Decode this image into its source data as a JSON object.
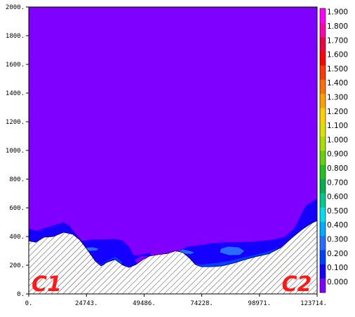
{
  "chart_data": {
    "type": "heatmap",
    "title": "",
    "xlabel": "",
    "ylabel": "",
    "xlim": [
      0,
      123714
    ],
    "ylim": [
      0,
      2000
    ],
    "x_ticks": [
      0,
      24743,
      49486,
      74228,
      98971,
      123714
    ],
    "x_tick_labels": [
      "0.",
      "24743.",
      "49486.",
      "74228.",
      "98971.",
      "123714."
    ],
    "y_ticks": [
      0,
      200,
      400,
      600,
      800,
      1000,
      1200,
      1400,
      1600,
      1800,
      2000
    ],
    "y_tick_labels": [
      "0.",
      "200.",
      "400.",
      "600.",
      "800.",
      "1000.",
      "1200.",
      "1400.",
      "1600.",
      "1800.",
      "2000."
    ],
    "colorbar": {
      "levels": [
        0.0,
        0.1,
        0.2,
        0.3,
        0.4,
        0.5,
        0.6,
        0.7,
        0.8,
        0.9,
        1.0,
        1.1,
        1.2,
        1.3,
        1.4,
        1.5,
        1.6,
        1.7,
        1.8,
        1.9
      ],
      "labels": [
        "0.000",
        "0.100",
        "0.200",
        "0.300",
        "0.400",
        "0.500",
        "0.600",
        "0.700",
        "0.800",
        "0.900",
        "1.000",
        "1.100",
        "1.200",
        "1.300",
        "1.400",
        "1.500",
        "1.600",
        "1.700",
        "1.800",
        "1.900"
      ],
      "colors": [
        "#8000ff",
        "#1400ff",
        "#0040ff",
        "#2a6cff",
        "#00aaff",
        "#00ddee",
        "#00c890",
        "#00b050",
        "#22c020",
        "#66d010",
        "#aadd00",
        "#dde000",
        "#ffd000",
        "#ffa000",
        "#ff7000",
        "#ff3a00",
        "#ff0000",
        "#ee0044",
        "#ff00aa",
        "#ff00ff"
      ]
    },
    "terrain": [
      [
        0,
        370
      ],
      [
        3000,
        360
      ],
      [
        6500,
        395
      ],
      [
        10500,
        400
      ],
      [
        15000,
        430
      ],
      [
        19000,
        415
      ],
      [
        22000,
        375
      ],
      [
        25500,
        300
      ],
      [
        28500,
        230
      ],
      [
        31000,
        195
      ],
      [
        33500,
        220
      ],
      [
        37000,
        240
      ],
      [
        40500,
        200
      ],
      [
        43000,
        185
      ],
      [
        46000,
        205
      ],
      [
        49000,
        240
      ],
      [
        52000,
        265
      ],
      [
        56000,
        275
      ],
      [
        59500,
        282
      ],
      [
        63000,
        300
      ],
      [
        66000,
        290
      ],
      [
        69000,
        250
      ],
      [
        71500,
        205
      ],
      [
        74000,
        190
      ],
      [
        78500,
        190
      ],
      [
        83000,
        195
      ],
      [
        88000,
        215
      ],
      [
        93000,
        240
      ],
      [
        98000,
        262
      ],
      [
        103000,
        280
      ],
      [
        108000,
        322
      ],
      [
        113000,
        392
      ],
      [
        117500,
        452
      ],
      [
        121500,
        495
      ],
      [
        123714,
        510
      ]
    ],
    "contours": [
      {
        "level": 0.1,
        "points": [
          [
            0,
            455
          ],
          [
            3500,
            440
          ],
          [
            6000,
            455
          ],
          [
            9000,
            470
          ],
          [
            12000,
            485
          ],
          [
            15000,
            500
          ],
          [
            17500,
            475
          ],
          [
            20000,
            420
          ],
          [
            23000,
            370
          ],
          [
            27000,
            380
          ],
          [
            32000,
            380
          ],
          [
            36000,
            385
          ],
          [
            40000,
            375
          ],
          [
            43000,
            330
          ],
          [
            45000,
            270
          ],
          [
            47500,
            270
          ],
          [
            49500,
            280
          ],
          [
            52000,
            285
          ],
          [
            53000,
            240
          ],
          [
            54500,
            255
          ],
          [
            56000,
            270
          ],
          [
            59000,
            260
          ],
          [
            61500,
            285
          ],
          [
            64000,
            300
          ],
          [
            68000,
            330
          ],
          [
            73000,
            340
          ],
          [
            79000,
            355
          ],
          [
            84000,
            360
          ],
          [
            90000,
            360
          ],
          [
            95000,
            365
          ],
          [
            100000,
            370
          ],
          [
            105000,
            380
          ],
          [
            110000,
            400
          ],
          [
            114000,
            460
          ],
          [
            116500,
            540
          ],
          [
            118500,
            610
          ],
          [
            121000,
            640
          ],
          [
            123714,
            665
          ],
          [
            123714,
            510
          ],
          [
            121500,
            495
          ],
          [
            117500,
            452
          ],
          [
            113000,
            392
          ],
          [
            108000,
            322
          ],
          [
            103000,
            280
          ],
          [
            98000,
            262
          ],
          [
            93000,
            240
          ],
          [
            88000,
            215
          ],
          [
            83000,
            195
          ],
          [
            78500,
            190
          ],
          [
            74000,
            190
          ],
          [
            71500,
            205
          ],
          [
            69000,
            250
          ],
          [
            66000,
            290
          ],
          [
            63000,
            300
          ],
          [
            59500,
            282
          ],
          [
            56000,
            275
          ],
          [
            52000,
            265
          ],
          [
            49000,
            240
          ],
          [
            46000,
            205
          ],
          [
            43000,
            185
          ],
          [
            40500,
            200
          ],
          [
            37000,
            240
          ],
          [
            33500,
            220
          ],
          [
            31000,
            195
          ],
          [
            28500,
            230
          ],
          [
            25500,
            300
          ],
          [
            22000,
            375
          ],
          [
            19000,
            415
          ],
          [
            15000,
            430
          ],
          [
            10500,
            400
          ],
          [
            6500,
            395
          ],
          [
            3000,
            360
          ],
          [
            0,
            370
          ]
        ]
      },
      {
        "level": 0.2,
        "points": [
          [
            25000,
            290
          ],
          [
            28000,
            240
          ],
          [
            31000,
            205
          ],
          [
            34000,
            235
          ],
          [
            37000,
            260
          ],
          [
            40000,
            225
          ],
          [
            40000,
            205
          ],
          [
            36500,
            245
          ],
          [
            33500,
            225
          ],
          [
            31000,
            200
          ],
          [
            28500,
            235
          ],
          [
            25500,
            300
          ]
        ]
      },
      {
        "level": 0.2,
        "points": [
          [
            64000,
            305
          ],
          [
            67500,
            260
          ],
          [
            70500,
            215
          ],
          [
            74000,
            205
          ],
          [
            80000,
            215
          ],
          [
            86000,
            230
          ],
          [
            92000,
            255
          ],
          [
            98000,
            275
          ],
          [
            103500,
            300
          ],
          [
            108000,
            330
          ],
          [
            103000,
            280
          ],
          [
            98000,
            262
          ],
          [
            93000,
            240
          ],
          [
            88000,
            215
          ],
          [
            83000,
            195
          ],
          [
            78500,
            190
          ],
          [
            74000,
            190
          ],
          [
            71500,
            205
          ],
          [
            69000,
            250
          ],
          [
            66000,
            290
          ]
        ]
      },
      {
        "level": 0.3,
        "points": [
          [
            23500,
            310
          ],
          [
            26000,
            300
          ],
          [
            29000,
            302
          ],
          [
            30000,
            315
          ],
          [
            27500,
            325
          ],
          [
            24500,
            322
          ]
        ]
      },
      {
        "level": 0.3,
        "points": [
          [
            66000,
            310
          ],
          [
            69000,
            300
          ],
          [
            71000,
            290
          ],
          [
            69500,
            278
          ],
          [
            66500,
            282
          ],
          [
            64500,
            300
          ]
        ]
      },
      {
        "level": 0.3,
        "points": [
          [
            82000,
            290
          ],
          [
            86000,
            270
          ],
          [
            90500,
            272
          ],
          [
            92500,
            300
          ],
          [
            90000,
            325
          ],
          [
            85500,
            330
          ],
          [
            82500,
            315
          ]
        ]
      },
      {
        "level": 0.0,
        "points": [
          [
            46500,
            205
          ],
          [
            49000,
            240
          ],
          [
            51500,
            262
          ],
          [
            52000,
            265
          ],
          [
            48500,
            265
          ],
          [
            45500,
            240
          ]
        ]
      },
      {
        "level": 0.0,
        "points": [
          [
            60500,
            285
          ],
          [
            62500,
            298
          ],
          [
            63000,
            300
          ],
          [
            60000,
            300
          ]
        ]
      }
    ],
    "annotations": [
      {
        "text": "C1",
        "x": 1200,
        "y": 20
      },
      {
        "text": "C2",
        "x": 108500,
        "y": 20
      }
    ]
  }
}
